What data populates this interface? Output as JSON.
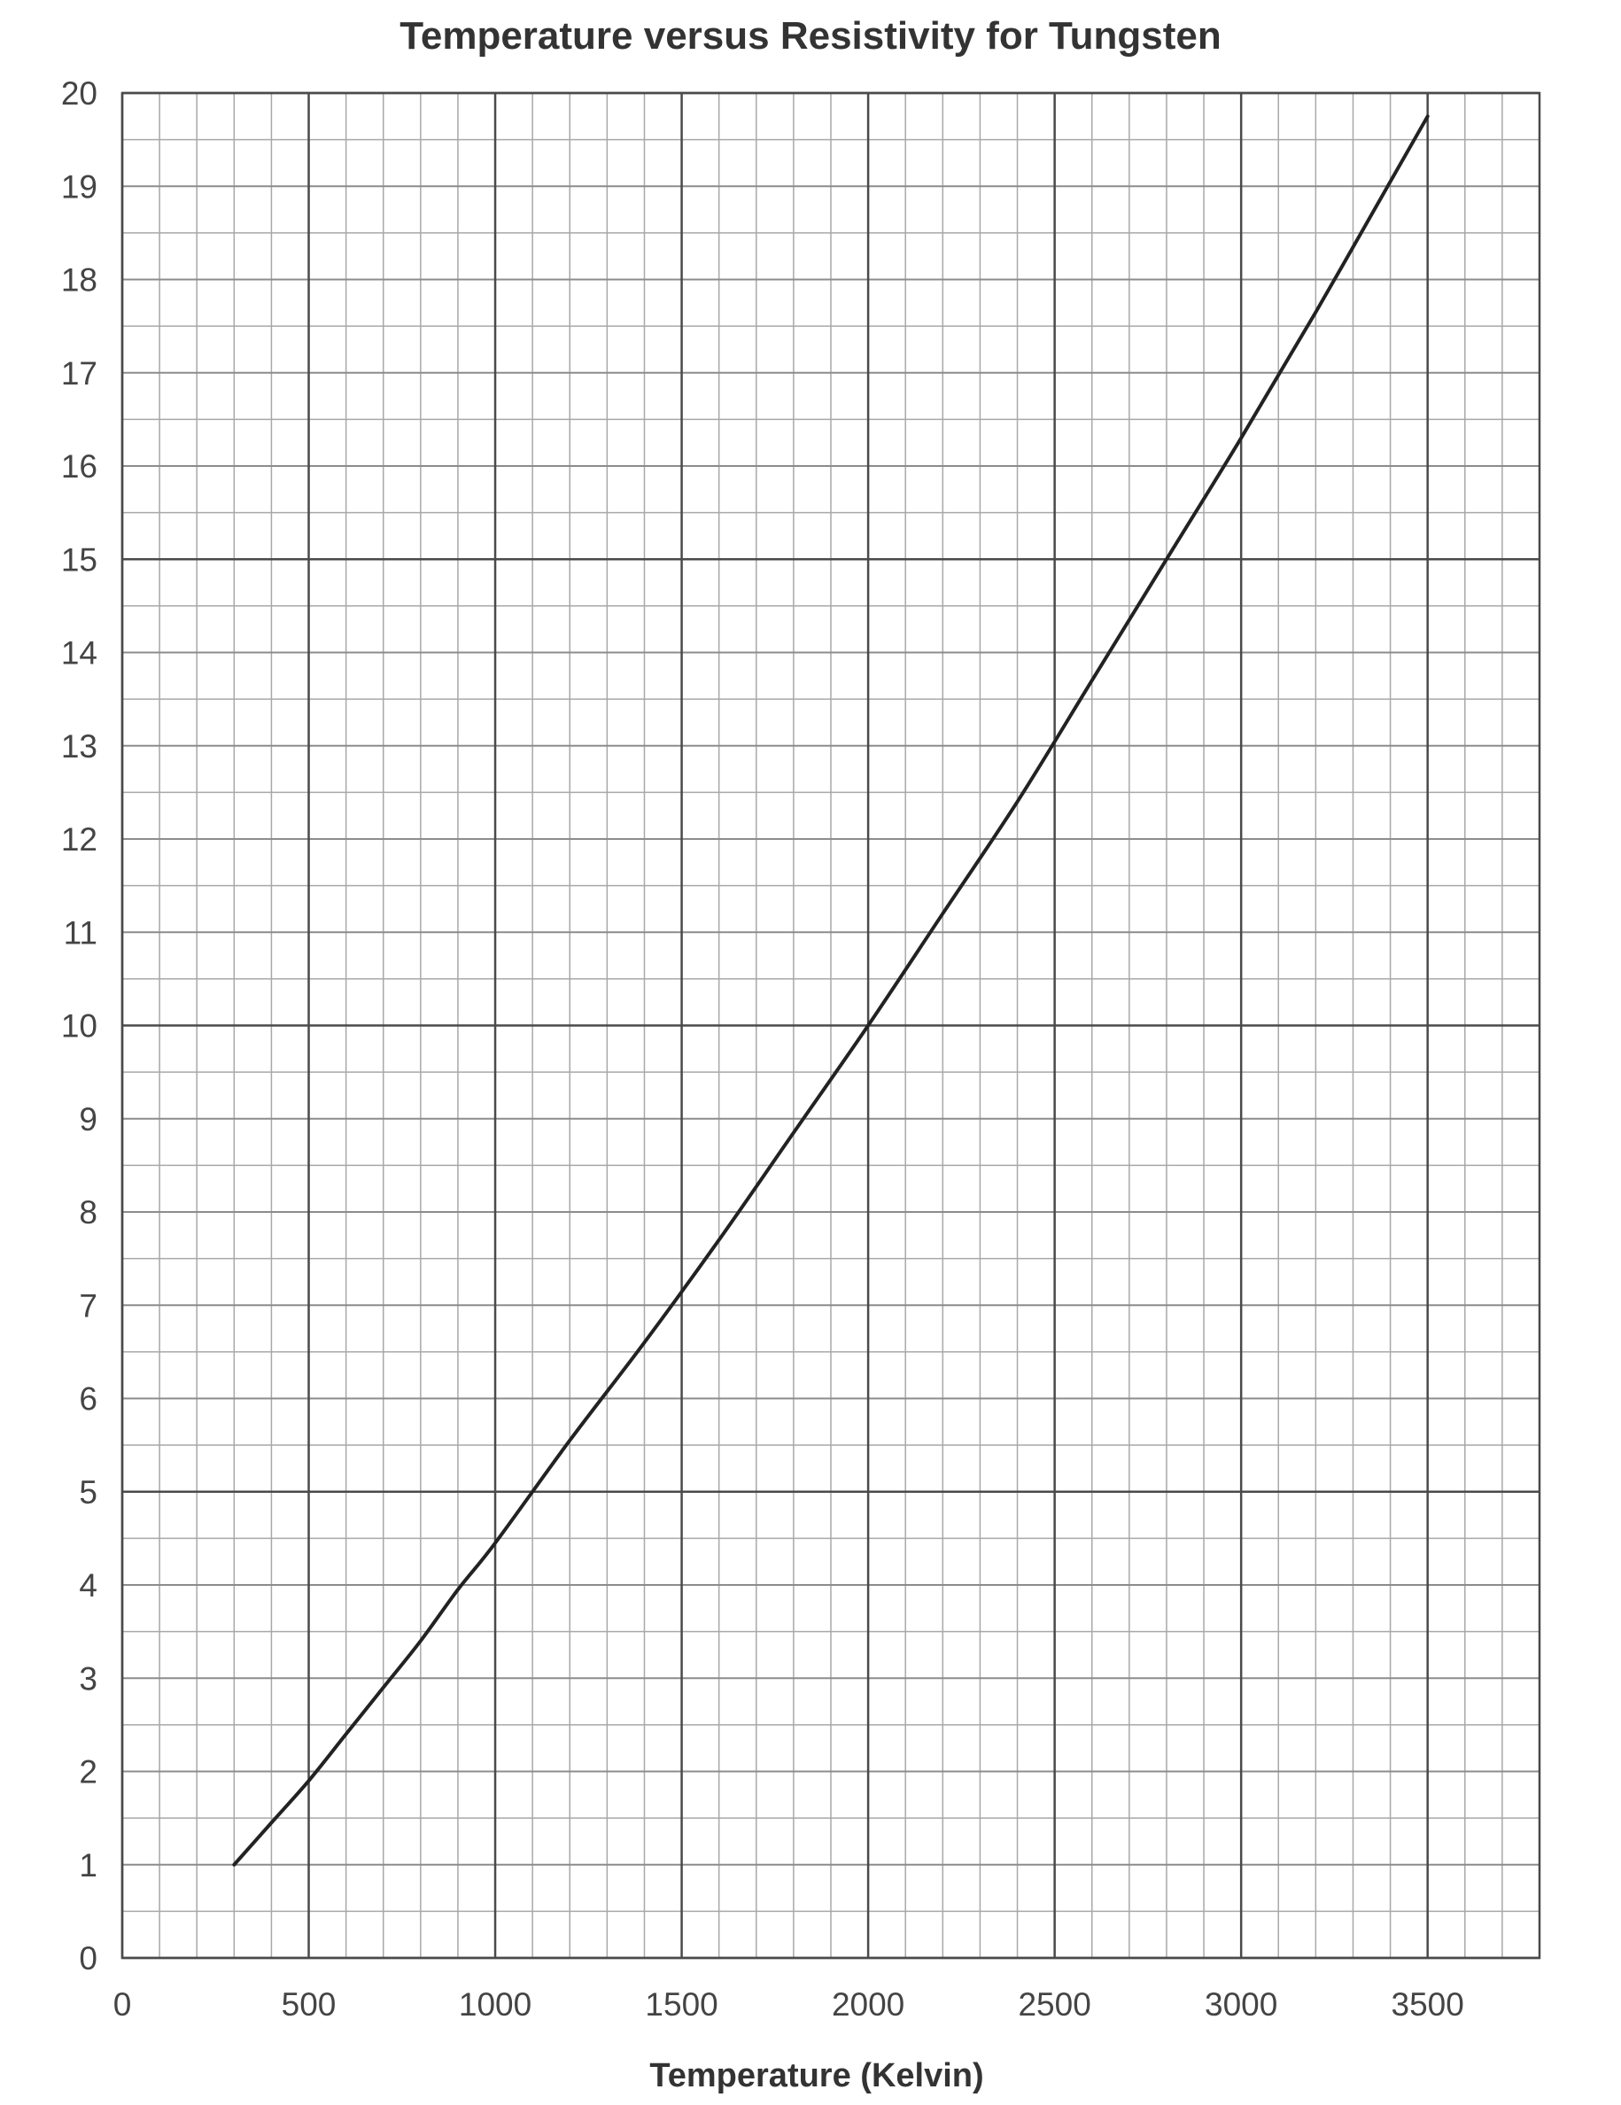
{
  "chart_data": {
    "type": "line",
    "title": "Temperature versus Resistivity for Tungsten",
    "xlabel": "Temperature (Kelvin)",
    "ylabel": "",
    "xlim": [
      0,
      3800
    ],
    "ylim": [
      0,
      20
    ],
    "x_ticks": [
      0,
      500,
      1000,
      1500,
      2000,
      2500,
      3000,
      3500
    ],
    "x_tick_labels": [
      "0",
      "500",
      "1000",
      "1500",
      "2000",
      "2500",
      "3000",
      "3500"
    ],
    "y_ticks": [
      0,
      1,
      2,
      3,
      4,
      5,
      6,
      7,
      8,
      9,
      10,
      11,
      12,
      13,
      14,
      15,
      16,
      17,
      18,
      19,
      20
    ],
    "y_tick_labels": [
      "0",
      "1",
      "2",
      "3",
      "4",
      "5",
      "6",
      "7",
      "8",
      "9",
      "10",
      "11",
      "12",
      "13",
      "14",
      "15",
      "16",
      "17",
      "18",
      "19",
      "20"
    ],
    "grid": true,
    "grid_minor_x_step": 100,
    "grid_minor_y_step": 0.5,
    "grid_major_x_step": 500,
    "grid_major_y_step": 5,
    "series": [
      {
        "color": "#222222",
        "x": [
          300,
          400,
          500,
          600,
          700,
          800,
          900,
          1000,
          1200,
          1400,
          1600,
          1800,
          2000,
          2200,
          2400,
          2600,
          2800,
          3000,
          3200,
          3400,
          3500
        ],
        "y": [
          1.0,
          1.45,
          1.9,
          2.4,
          2.9,
          3.4,
          3.95,
          4.45,
          5.55,
          6.6,
          7.7,
          8.85,
          10.0,
          11.2,
          12.4,
          13.7,
          15.0,
          16.3,
          17.65,
          19.05,
          19.75
        ]
      }
    ],
    "colors": {
      "minor_grid": "#a8a8a8",
      "major_grid": "#4a4a4a",
      "line": "#222222"
    }
  }
}
